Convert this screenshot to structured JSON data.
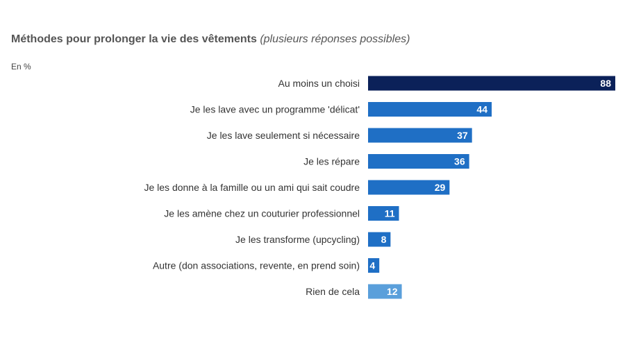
{
  "chart_data": {
    "type": "bar",
    "orientation": "horizontal",
    "title": "Méthodes pour prolonger la vie des vêtements",
    "subtitle": "(plusieurs réponses possibles)",
    "unit": "En %",
    "categories": [
      "Au moins un choisi",
      "Je les lave avec un programme 'délicat'",
      "Je les lave seulement si nécessaire",
      "Je les répare",
      "Je les donne à la famille ou un ami qui sait coudre",
      "Je les amène chez un couturier professionnel",
      "Je les transforme (upcycling)",
      "Autre (don associations, revente, en prend soin)",
      "Rien de cela"
    ],
    "values": [
      88,
      44,
      37,
      36,
      29,
      11,
      8,
      4,
      12
    ],
    "colors": [
      "#0b2159",
      "#1f6fc5",
      "#1f6fc5",
      "#1f6fc5",
      "#1f6fc5",
      "#1f6fc5",
      "#1f6fc5",
      "#1f6fc5",
      "#5a9fdb"
    ],
    "xlim": [
      0,
      88
    ],
    "grid": false,
    "legend": "none"
  }
}
